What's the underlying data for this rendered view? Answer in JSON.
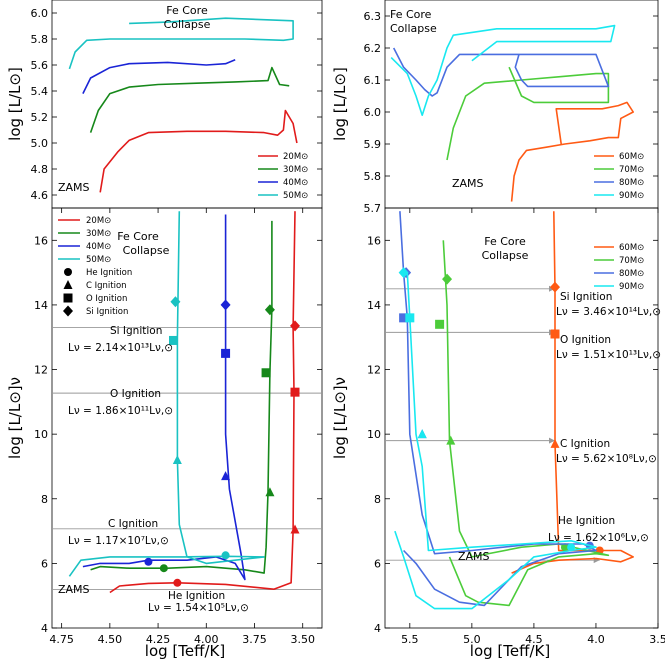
{
  "colors": {
    "20": "#e11b1b",
    "30": "#16881a",
    "40": "#1a24d6",
    "50": "#19c2c2",
    "60": "#ff5a14",
    "70": "#4ccc3a",
    "80": "#4a6ee0",
    "90": "#19e8f0"
  },
  "chart_data": [
    {
      "id": "top-left",
      "type": "line",
      "ylabel": "log [L/L⊙]",
      "ylim": [
        4.5,
        6.1
      ],
      "xlim": [
        4.8,
        3.4
      ],
      "x_reversed": true,
      "yticks": [
        4.6,
        4.8,
        5.0,
        5.2,
        5.4,
        5.6,
        5.8,
        6.0
      ],
      "ytick_labels": [
        "4.6",
        "4.8",
        "5.0",
        "5.2",
        "5.4",
        "5.6",
        "5.8",
        "6.0"
      ],
      "annotations": {
        "collapse_line1": "Fe Core",
        "collapse_line2": "Collapse",
        "zams": "ZAMS"
      },
      "legend": [
        "20M⊙",
        "30M⊙",
        "40M⊙",
        "50M⊙"
      ],
      "series": [
        {
          "name": "20",
          "x": [
            4.55,
            4.53,
            4.46,
            4.4,
            4.3,
            4.1,
            3.9,
            3.7,
            3.63,
            3.6,
            3.59,
            3.55,
            3.53
          ],
          "y": [
            4.62,
            4.8,
            4.93,
            5.02,
            5.08,
            5.09,
            5.09,
            5.08,
            5.06,
            5.1,
            5.25,
            5.15,
            5.0
          ]
        },
        {
          "name": "30",
          "x": [
            4.6,
            4.56,
            4.5,
            4.4,
            4.25,
            4.05,
            3.85,
            3.68,
            3.66,
            3.62,
            3.57
          ],
          "y": [
            5.08,
            5.25,
            5.38,
            5.43,
            5.45,
            5.46,
            5.47,
            5.48,
            5.58,
            5.45,
            5.44
          ]
        },
        {
          "name": "40",
          "x": [
            4.64,
            4.6,
            4.5,
            4.4,
            4.2,
            4.0,
            3.9,
            3.85
          ],
          "y": [
            5.38,
            5.5,
            5.58,
            5.61,
            5.62,
            5.6,
            5.61,
            5.64
          ]
        },
        {
          "name": "50",
          "x": [
            4.71,
            4.68,
            4.62,
            4.5,
            4.3,
            4.1,
            3.9,
            3.8,
            3.6,
            3.55,
            3.55,
            3.9,
            4.2,
            4.4
          ],
          "y": [
            5.57,
            5.7,
            5.79,
            5.8,
            5.8,
            5.8,
            5.8,
            5.8,
            5.79,
            5.8,
            5.94,
            5.96,
            5.93,
            5.92
          ]
        }
      ]
    },
    {
      "id": "top-right",
      "type": "line",
      "ylabel": "log [L/L⊙]",
      "ylim": [
        5.7,
        6.35
      ],
      "xlim": [
        5.7,
        3.5
      ],
      "x_reversed": true,
      "yticks": [
        5.7,
        5.8,
        5.9,
        6.0,
        6.1,
        6.2,
        6.3
      ],
      "ytick_labels": [
        "5.7",
        "5.8",
        "5.9",
        "6.0",
        "6.1",
        "6.2",
        "6.3"
      ],
      "annotations": {
        "collapse_line1": "Fe Core",
        "collapse_line2": "Collapse",
        "zams": "ZAMS"
      },
      "legend": [
        "60M⊙",
        "70M⊙",
        "80M⊙",
        "90M⊙"
      ],
      "series": [
        {
          "name": "60",
          "x": [
            4.68,
            4.66,
            4.62,
            4.56,
            4.4,
            4.25,
            4.05,
            3.9,
            3.82,
            3.8,
            3.7,
            3.75,
            3.82,
            3.95,
            4.15,
            4.32,
            4.28
          ],
          "y": [
            5.72,
            5.8,
            5.85,
            5.88,
            5.89,
            5.9,
            5.91,
            5.92,
            5.92,
            5.98,
            6.0,
            6.03,
            6.02,
            6.01,
            6.01,
            6.01,
            5.9
          ]
        },
        {
          "name": "70",
          "x": [
            5.2,
            5.15,
            5.05,
            4.9,
            4.6,
            4.3,
            4.0,
            3.9,
            3.9,
            4.2,
            4.5,
            4.6,
            4.7
          ],
          "y": [
            5.85,
            5.95,
            6.05,
            6.09,
            6.1,
            6.11,
            6.12,
            6.12,
            6.03,
            6.03,
            6.03,
            6.05,
            6.14
          ]
        },
        {
          "name": "80",
          "x": [
            5.63,
            5.55,
            5.45,
            5.38,
            5.32,
            5.28,
            5.2,
            5.1,
            4.8,
            4.5,
            4.1,
            4.0,
            3.9,
            4.1,
            4.4,
            4.55,
            4.6,
            4.65,
            4.62
          ],
          "y": [
            6.2,
            6.14,
            6.1,
            6.07,
            6.05,
            6.06,
            6.14,
            6.18,
            6.18,
            6.18,
            6.18,
            6.18,
            6.08,
            6.08,
            6.08,
            6.08,
            6.1,
            6.14,
            6.18
          ]
        },
        {
          "name": "90",
          "x": [
            5.65,
            5.52,
            5.45,
            5.4,
            5.35,
            5.28,
            5.2,
            5.15,
            4.8,
            4.3,
            4.0,
            3.85,
            3.88,
            4.2,
            4.5,
            4.8,
            5.0
          ],
          "y": [
            6.17,
            6.12,
            6.05,
            5.99,
            6.05,
            6.1,
            6.2,
            6.24,
            6.26,
            6.26,
            6.26,
            6.27,
            6.22,
            6.22,
            6.22,
            6.22,
            6.16
          ]
        }
      ]
    },
    {
      "id": "bottom-left",
      "type": "line",
      "ylabel": "log [L/L⊙]ν",
      "xlabel": "log [Teff/K]",
      "ylim": [
        4,
        17
      ],
      "xlim": [
        4.8,
        3.4
      ],
      "x_reversed": true,
      "yticks": [
        4,
        6,
        8,
        10,
        12,
        14,
        16
      ],
      "ytick_labels": [
        "4",
        "6",
        "8",
        "10",
        "12",
        "14",
        "16"
      ],
      "xticks": [
        4.75,
        4.5,
        4.25,
        4.0,
        3.75,
        3.5
      ],
      "xtick_labels": [
        "4.75",
        "4.50",
        "4.25",
        "4.00",
        "3.75",
        "3.50"
      ],
      "legend": [
        "20M⊙",
        "30M⊙",
        "40M⊙",
        "50M⊙"
      ],
      "legend_markers": [
        "He Ignition",
        "C Ignition",
        "O Ignition",
        "Si Ignition"
      ],
      "annotations": {
        "collapse_line1": "Fe Core",
        "collapse_line2": "Collapse",
        "zams": "ZAMS",
        "si_label": "Si Ignition",
        "si_lum": "Lν = 2.14×10¹³Lν,⊙",
        "o_label": "O Ignition",
        "o_lum": "Lν = 1.86×10¹¹Lν,⊙",
        "c_label": "C Ignition",
        "c_lum": "Lν = 1.17×10⁷Lν,⊙",
        "he_label": "He Ignition",
        "he_lum": "Lν = 1.54×10⁵Lν,⊙"
      },
      "reference_lines": [
        13.3,
        11.27,
        7.07,
        5.19
      ],
      "series": [
        {
          "name": "20",
          "x": [
            4.5,
            4.45,
            4.3,
            4.15,
            3.9,
            3.65,
            3.56,
            3.55,
            3.545,
            3.55,
            3.54
          ],
          "y": [
            5.1,
            5.3,
            5.38,
            5.4,
            5.35,
            5.2,
            5.4,
            7.0,
            11.3,
            13.3,
            16.9
          ],
          "markers": {
            "he": [
              4.15,
              5.4
            ],
            "c": [
              3.54,
              7.05
            ],
            "o": [
              3.54,
              11.3
            ],
            "si": [
              3.54,
              13.35
            ]
          }
        },
        {
          "name": "30",
          "x": [
            4.6,
            4.55,
            4.4,
            4.2,
            4.0,
            3.8,
            3.7,
            3.69,
            3.68,
            3.67,
            3.66,
            3.66
          ],
          "y": [
            5.8,
            5.9,
            5.85,
            5.85,
            5.9,
            5.8,
            5.7,
            6.5,
            8.2,
            11.9,
            13.9,
            16.6
          ],
          "markers": {
            "he": [
              4.22,
              5.85
            ],
            "c": [
              3.67,
              8.2
            ],
            "o": [
              3.69,
              11.9
            ],
            "si": [
              3.67,
              13.85
            ]
          }
        },
        {
          "name": "40",
          "x": [
            4.64,
            4.55,
            4.4,
            4.3,
            4.1,
            3.95,
            3.85,
            3.8,
            3.82,
            3.88,
            3.9,
            3.9,
            3.9
          ],
          "y": [
            5.9,
            6.0,
            6.0,
            6.1,
            6.1,
            6.2,
            6.0,
            5.5,
            6.3,
            8.3,
            10.0,
            14.0,
            16.8
          ],
          "markers": {
            "he": [
              4.3,
              6.05
            ],
            "c": [
              3.9,
              8.7
            ],
            "o": [
              3.9,
              12.5
            ],
            "si": [
              3.9,
              14.0
            ]
          }
        },
        {
          "name": "50",
          "x": [
            4.71,
            4.65,
            4.5,
            4.3,
            4.15,
            3.9,
            3.7,
            4.0,
            4.1,
            4.14,
            4.15,
            4.15,
            4.14
          ],
          "y": [
            5.6,
            6.1,
            6.2,
            6.2,
            6.2,
            6.22,
            6.2,
            6.0,
            6.2,
            7.2,
            9.2,
            13.0,
            16.9
          ],
          "markers": {
            "he": [
              3.9,
              6.25
            ],
            "c": [
              4.15,
              9.2
            ],
            "o": [
              4.17,
              12.9
            ],
            "si": [
              4.16,
              14.1
            ]
          }
        }
      ]
    },
    {
      "id": "bottom-right",
      "type": "line",
      "ylabel": "log [L/L⊙]ν",
      "xlabel": "log [Teff/K]",
      "ylim": [
        4,
        17
      ],
      "xlim": [
        5.7,
        3.5
      ],
      "x_reversed": true,
      "yticks": [
        4,
        6,
        8,
        10,
        12,
        14,
        16
      ],
      "ytick_labels": [
        "4",
        "6",
        "8",
        "10",
        "12",
        "14",
        "16"
      ],
      "xticks": [
        5.5,
        5.0,
        4.5,
        4.0,
        3.5
      ],
      "xtick_labels": [
        "5.5",
        "5.0",
        "4.5",
        "4.0",
        "3.5"
      ],
      "legend": [
        "60M⊙",
        "70M⊙",
        "80M⊙",
        "90M⊙"
      ],
      "annotations": {
        "collapse_line1": "Fe Core",
        "collapse_line2": "Collapse",
        "zams": "ZAMS",
        "si_label": "Si Ignition",
        "si_lum": "Lν = 3.46×10¹⁴Lν,⊙",
        "o_label": "O Ignition",
        "o_lum": "Lν = 1.51×10¹³Lν,⊙",
        "c_label": "C Ignition",
        "c_lum": "Lν = 5.62×10⁸Lν,⊙",
        "he_label": "He Ignition",
        "he_lum": "Lν = 1.62×10⁶Lν,⊙"
      },
      "series": [
        {
          "name": "60",
          "x": [
            4.68,
            4.5,
            4.3,
            4.0,
            3.8,
            3.7,
            3.8,
            4.0,
            4.3,
            4.33,
            4.33,
            4.33,
            4.34
          ],
          "y": [
            5.7,
            6.0,
            6.1,
            6.15,
            6.05,
            6.2,
            6.4,
            6.4,
            6.4,
            9.7,
            13.1,
            14.5,
            16.9
          ],
          "markers": {
            "he": [
              3.97,
              6.4
            ],
            "c": [
              4.33,
              9.7
            ],
            "o": [
              4.33,
              13.1
            ],
            "si": [
              4.33,
              14.55
            ]
          }
        },
        {
          "name": "70",
          "x": [
            5.18,
            5.05,
            4.95,
            4.7,
            4.55,
            4.3,
            4.0,
            3.9,
            4.3,
            4.6,
            5.0,
            5.1,
            5.18,
            5.2,
            5.23
          ],
          "y": [
            6.2,
            5.0,
            4.8,
            4.7,
            5.8,
            6.2,
            6.3,
            6.25,
            6.6,
            6.5,
            6.2,
            7.0,
            9.8,
            14.0,
            16.0
          ],
          "markers": {
            "he": [
              4.25,
              6.5
            ],
            "c": [
              5.17,
              9.8
            ],
            "o": [
              5.26,
              13.4
            ],
            "si": [
              5.2,
              14.8
            ]
          }
        },
        {
          "name": "80",
          "x": [
            5.55,
            5.45,
            5.3,
            5.1,
            4.9,
            4.6,
            4.3,
            4.0,
            4.1,
            4.5,
            5.0,
            5.3,
            5.4,
            5.5,
            5.52,
            5.55,
            5.58
          ],
          "y": [
            6.4,
            6.0,
            5.2,
            4.8,
            4.7,
            5.9,
            6.3,
            6.4,
            6.6,
            6.6,
            6.4,
            6.3,
            7.5,
            10.0,
            13.6,
            15.0,
            16.9
          ],
          "markers": {
            "he": [
              4.05,
              6.55
            ],
            "c": [
              5.4,
              10.0
            ],
            "o": [
              5.55,
              13.6
            ],
            "si": [
              5.53,
              15.0
            ]
          }
        },
        {
          "name": "90",
          "x": [
            5.62,
            5.55,
            5.45,
            5.3,
            5.0,
            4.7,
            4.5,
            4.2,
            4.0,
            4.2,
            4.6,
            5.0,
            5.35,
            5.4,
            5.45,
            5.5,
            5.52
          ],
          "y": [
            7.0,
            6.2,
            5.0,
            4.6,
            4.6,
            5.5,
            6.2,
            6.4,
            6.5,
            6.7,
            6.6,
            6.5,
            6.4,
            9.0,
            10.0,
            13.6,
            15.0
          ],
          "markers": {
            "he": [
              4.2,
              6.5
            ],
            "c": [
              5.4,
              10.0
            ],
            "o": [
              5.5,
              13.6
            ],
            "si": [
              5.55,
              15.0
            ]
          }
        }
      ]
    }
  ]
}
